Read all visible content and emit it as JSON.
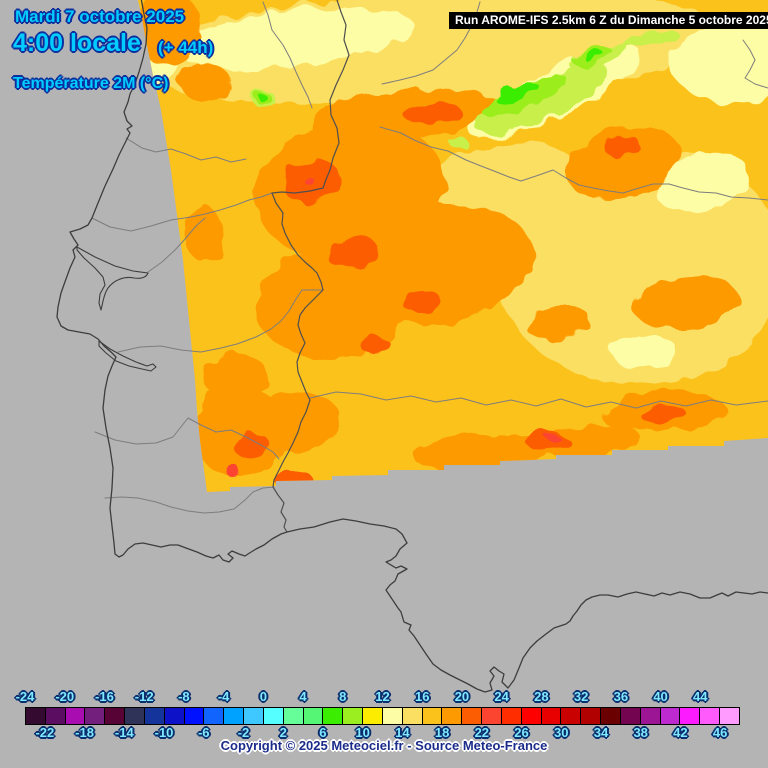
{
  "header": {
    "date": "Mardi 7 octobre 2025",
    "time": "4:00 locale",
    "offset": "(+ 44h)",
    "variable": "Température 2M (°C)"
  },
  "run_banner": {
    "text": "Run AROME-IFS 2.5km 6 Z du Dimanche 5 octobre 2025"
  },
  "footer": {
    "copyright": "Copyright © 2025 Meteociel.fr - Source Meteo-France"
  },
  "colors": {
    "background": "#B4B4B4",
    "banner_bg": "#000000",
    "banner_text": "#FFFFFF",
    "header_text": "#00CCFF",
    "header_outline": "#0D2F9E",
    "scale_text": "#7FE9FF",
    "scale_text_outline": "#0A2F6E",
    "copyright_text": "#1B2C8A",
    "coastline": "#3D3D3D",
    "country_border": "#4F4F4F",
    "district_border": "#7D7D7D"
  },
  "scale": {
    "unit": "°C",
    "min": -24,
    "step": 2,
    "top_labels": [
      -24,
      -20,
      -16,
      -12,
      -8,
      -4,
      0,
      4,
      8,
      12,
      16,
      20,
      24,
      28,
      32,
      36,
      40,
      44
    ],
    "bottom_labels": [
      -22,
      -18,
      -14,
      -10,
      -6,
      -2,
      2,
      6,
      10,
      14,
      18,
      22,
      26,
      30,
      34,
      38,
      42,
      46
    ],
    "cells": [
      {
        "from": -24,
        "color": "#350A30"
      },
      {
        "from": -22,
        "color": "#5B0D62"
      },
      {
        "from": -20,
        "color": "#A90CB0"
      },
      {
        "from": -18,
        "color": "#731F7D"
      },
      {
        "from": -16,
        "color": "#570335"
      },
      {
        "from": -14,
        "color": "#2F3357"
      },
      {
        "from": -12,
        "color": "#14349B"
      },
      {
        "from": -10,
        "color": "#0D12C9"
      },
      {
        "from": -8,
        "color": "#0011FF"
      },
      {
        "from": -6,
        "color": "#1264FF"
      },
      {
        "from": -4,
        "color": "#00A2FF"
      },
      {
        "from": -2,
        "color": "#3EC8FF"
      },
      {
        "from": 0,
        "color": "#55FFFF"
      },
      {
        "from": 2,
        "color": "#66FE98"
      },
      {
        "from": 4,
        "color": "#55F575"
      },
      {
        "from": 6,
        "color": "#3BED00"
      },
      {
        "from": 8,
        "color": "#9BEE1F"
      },
      {
        "from": 10,
        "color": "#FCED00"
      },
      {
        "from": 12,
        "color": "#FDFDA5"
      },
      {
        "from": 14,
        "color": "#FBDF63"
      },
      {
        "from": 16,
        "color": "#FCC21C"
      },
      {
        "from": 18,
        "color": "#FD9A01"
      },
      {
        "from": 20,
        "color": "#FC5D02"
      },
      {
        "from": 22,
        "color": "#FB4531"
      },
      {
        "from": 24,
        "color": "#FF2D00"
      },
      {
        "from": 26,
        "color": "#FE0000"
      },
      {
        "from": 28,
        "color": "#E80000"
      },
      {
        "from": 30,
        "color": "#C90101"
      },
      {
        "from": 32,
        "color": "#B10101"
      },
      {
        "from": 34,
        "color": "#6B0000"
      },
      {
        "from": 36,
        "color": "#730550"
      },
      {
        "from": 38,
        "color": "#9C1594"
      },
      {
        "from": 40,
        "color": "#BD2AD0"
      },
      {
        "from": 42,
        "color": "#FC1BFE"
      },
      {
        "from": 44,
        "color": "#FE5AFC"
      },
      {
        "from": 46,
        "color": "#FF9BFE"
      }
    ]
  }
}
